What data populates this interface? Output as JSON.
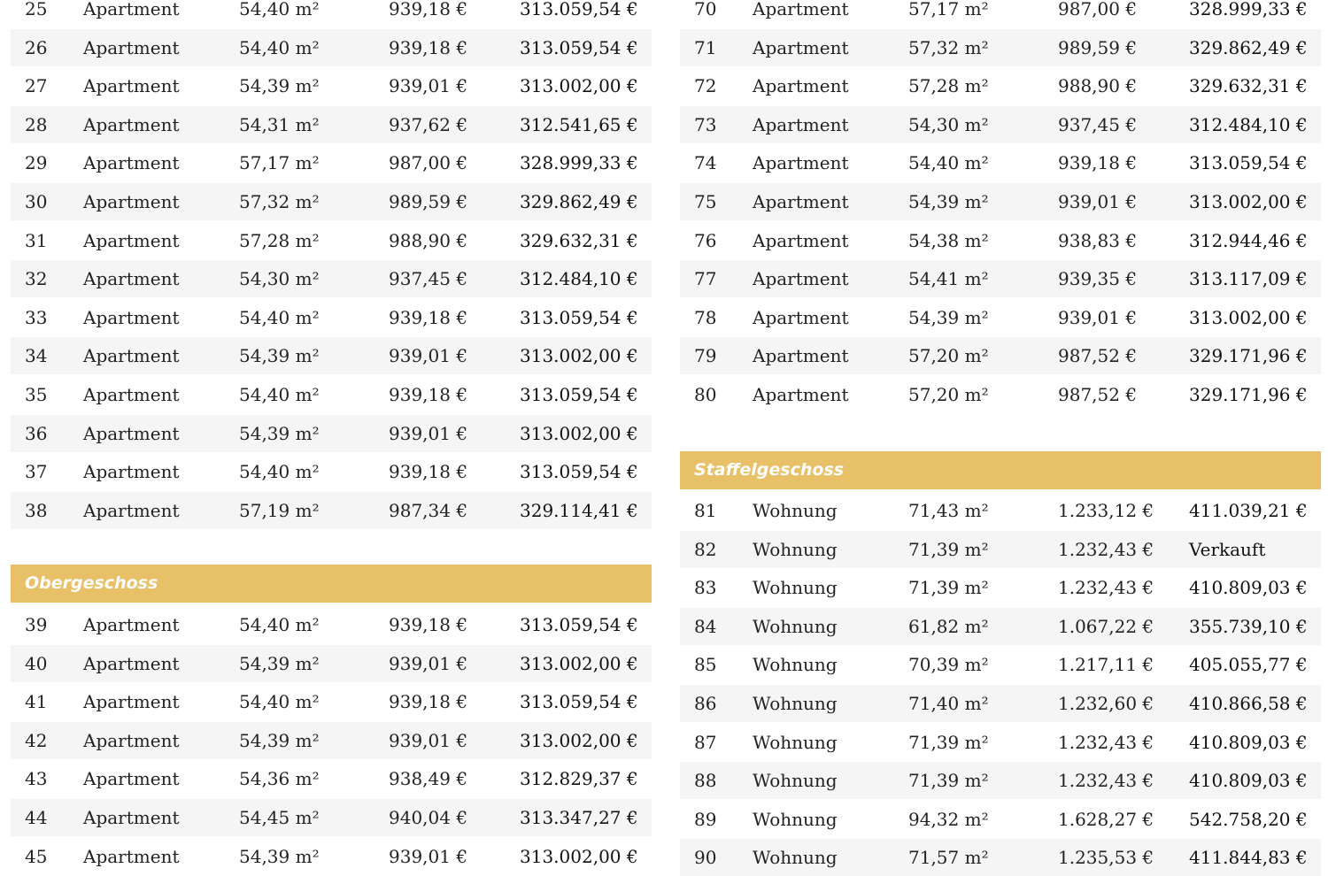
{
  "left": {
    "rows_top": [
      {
        "num": "25",
        "type": "Apartment",
        "area": "54,40 m²",
        "rent": "939,18 €",
        "price": "313.059,54 €"
      },
      {
        "num": "26",
        "type": "Apartment",
        "area": "54,40 m²",
        "rent": "939,18 €",
        "price": "313.059,54 €"
      },
      {
        "num": "27",
        "type": "Apartment",
        "area": "54,39 m²",
        "rent": "939,01 €",
        "price": "313.002,00 €"
      },
      {
        "num": "28",
        "type": "Apartment",
        "area": "54,31 m²",
        "rent": "937,62 €",
        "price": "312.541,65 €"
      },
      {
        "num": "29",
        "type": "Apartment",
        "area": "57,17 m²",
        "rent": "987,00 €",
        "price": "328.999,33 €"
      },
      {
        "num": "30",
        "type": "Apartment",
        "area": "57,32 m²",
        "rent": "989,59 €",
        "price": "329.862,49 €"
      },
      {
        "num": "31",
        "type": "Apartment",
        "area": "57,28 m²",
        "rent": "988,90 €",
        "price": "329.632,31 €"
      },
      {
        "num": "32",
        "type": "Apartment",
        "area": "54,30 m²",
        "rent": "937,45 €",
        "price": "312.484,10 €"
      },
      {
        "num": "33",
        "type": "Apartment",
        "area": "54,40 m²",
        "rent": "939,18 €",
        "price": "313.059,54 €"
      },
      {
        "num": "34",
        "type": "Apartment",
        "area": "54,39 m²",
        "rent": "939,01 €",
        "price": "313.002,00 €"
      },
      {
        "num": "35",
        "type": "Apartment",
        "area": "54,40 m²",
        "rent": "939,18 €",
        "price": "313.059,54 €"
      },
      {
        "num": "36",
        "type": "Apartment",
        "area": "54,39 m²",
        "rent": "939,01 €",
        "price": "313.002,00 €"
      },
      {
        "num": "37",
        "type": "Apartment",
        "area": "54,40 m²",
        "rent": "939,18 €",
        "price": "313.059,54 €"
      },
      {
        "num": "38",
        "type": "Apartment",
        "area": "57,19 m²",
        "rent": "987,34 €",
        "price": "329.114,41 €"
      }
    ],
    "section_title": "Obergeschoss",
    "rows_bottom": [
      {
        "num": "39",
        "type": "Apartment",
        "area": "54,40 m²",
        "rent": "939,18 €",
        "price": "313.059,54 €"
      },
      {
        "num": "40",
        "type": "Apartment",
        "area": "54,39 m²",
        "rent": "939,01 €",
        "price": "313.002,00 €"
      },
      {
        "num": "41",
        "type": "Apartment",
        "area": "54,40 m²",
        "rent": "939,18 €",
        "price": "313.059,54 €"
      },
      {
        "num": "42",
        "type": "Apartment",
        "area": "54,39 m²",
        "rent": "939,01 €",
        "price": "313.002,00 €"
      },
      {
        "num": "43",
        "type": "Apartment",
        "area": "54,36 m²",
        "rent": "938,49 €",
        "price": "312.829,37 €"
      },
      {
        "num": "44",
        "type": "Apartment",
        "area": "54,45 m²",
        "rent": "940,04 €",
        "price": "313.347,27 €"
      },
      {
        "num": "45",
        "type": "Apartment",
        "area": "54,39 m²",
        "rent": "939,01 €",
        "price": "313.002,00 €"
      }
    ]
  },
  "right": {
    "rows_top": [
      {
        "num": "70",
        "type": "Apartment",
        "area": "57,17 m²",
        "rent": "987,00 €",
        "price": "328.999,33 €"
      },
      {
        "num": "71",
        "type": "Apartment",
        "area": "57,32 m²",
        "rent": "989,59 €",
        "price": "329.862,49 €"
      },
      {
        "num": "72",
        "type": "Apartment",
        "area": "57,28 m²",
        "rent": "988,90 €",
        "price": "329.632,31 €"
      },
      {
        "num": "73",
        "type": "Apartment",
        "area": "54,30 m²",
        "rent": "937,45 €",
        "price": "312.484,10 €"
      },
      {
        "num": "74",
        "type": "Apartment",
        "area": "54,40 m²",
        "rent": "939,18 €",
        "price": "313.059,54 €"
      },
      {
        "num": "75",
        "type": "Apartment",
        "area": "54,39 m²",
        "rent": "939,01 €",
        "price": "313.002,00 €"
      },
      {
        "num": "76",
        "type": "Apartment",
        "area": "54,38 m²",
        "rent": "938,83 €",
        "price": "312.944,46 €"
      },
      {
        "num": "77",
        "type": "Apartment",
        "area": "54,41 m²",
        "rent": "939,35 €",
        "price": "313.117,09 €"
      },
      {
        "num": "78",
        "type": "Apartment",
        "area": "54,39 m²",
        "rent": "939,01 €",
        "price": "313.002,00 €"
      },
      {
        "num": "79",
        "type": "Apartment",
        "area": "57,20 m²",
        "rent": "987,52 €",
        "price": "329.171,96 €"
      },
      {
        "num": "80",
        "type": "Apartment",
        "area": "57,20 m²",
        "rent": "987,52 €",
        "price": "329.171,96 €"
      }
    ],
    "section_title": "Staffelgeschoss",
    "rows_bottom": [
      {
        "num": "81",
        "type": "Wohnung",
        "area": "71,43 m²",
        "rent": "1.233,12 €",
        "price": "411.039,21 €"
      },
      {
        "num": "82",
        "type": "Wohnung",
        "area": "71,39 m²",
        "rent": "1.232,43 €",
        "price": "Verkauft"
      },
      {
        "num": "83",
        "type": "Wohnung",
        "area": "71,39 m²",
        "rent": "1.232,43 €",
        "price": "410.809,03 €"
      },
      {
        "num": "84",
        "type": "Wohnung",
        "area": "61,82 m²",
        "rent": "1.067,22 €",
        "price": "355.739,10 €"
      },
      {
        "num": "85",
        "type": "Wohnung",
        "area": "70,39 m²",
        "rent": "1.217,11 €",
        "price": "405.055,77 €"
      },
      {
        "num": "86",
        "type": "Wohnung",
        "area": "71,40 m²",
        "rent": "1.232,60 €",
        "price": "410.866,58 €"
      },
      {
        "num": "87",
        "type": "Wohnung",
        "area": "71,39 m²",
        "rent": "1.232,43 €",
        "price": "410.809,03 €"
      },
      {
        "num": "88",
        "type": "Wohnung",
        "area": "71,39 m²",
        "rent": "1.232,43 €",
        "price": "410.809,03 €"
      },
      {
        "num": "89",
        "type": "Wohnung",
        "area": "94,32 m²",
        "rent": "1.628,27 €",
        "price": "542.758,20 €"
      },
      {
        "num": "90",
        "type": "Wohnung",
        "area": "71,57 m²",
        "rent": "1.235,53 €",
        "price": "411.844,83 €"
      }
    ]
  },
  "colors": {
    "section_header_bg": "#e7c068",
    "row_shade": "#f5f5f5"
  }
}
